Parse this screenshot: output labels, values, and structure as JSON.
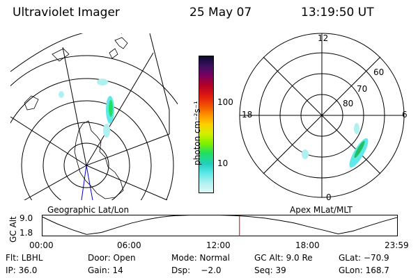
{
  "header": {
    "instrument": "Ultraviolet Imager",
    "date": "25 May 07",
    "time": "13:19:50 UT"
  },
  "colorbar": {
    "label": "photon cm⁻²s⁻¹",
    "ticks": [
      "100",
      "10"
    ],
    "colors": [
      "#0a0a30",
      "#3a1060",
      "#7a0060",
      "#b00028",
      "#e01810",
      "#f05000",
      "#ff9000",
      "#ffd000",
      "#d0f000",
      "#80f000",
      "#20e060",
      "#20d0c0",
      "#60e8e8",
      "#b0f0f0",
      "#e0f8f8"
    ]
  },
  "left_map": {
    "label": "Geographic Lat/Lon"
  },
  "right_map": {
    "label": "Apex MLat/MLT",
    "mlt_labels": [
      "12",
      "18",
      "6",
      "0"
    ],
    "lat_labels": [
      "60",
      "70",
      "80"
    ]
  },
  "chart_data": {
    "type": "line",
    "title": "",
    "ylabel": "GC Alt",
    "yticks": [
      "9.0",
      "1.8"
    ],
    "ylim": [
      1.8,
      9.0
    ],
    "xticks": [
      "00:00",
      "06:00",
      "12:00",
      "18:00",
      "23:59"
    ],
    "series": [
      {
        "x": [
          0,
          1,
          2,
          3,
          4,
          5,
          6,
          7,
          8,
          9,
          10,
          11,
          11.5,
          12,
          13,
          14,
          15,
          16,
          17,
          18,
          19,
          20,
          21,
          22,
          23,
          23.99
        ],
        "y": [
          8.4,
          6.0,
          4.0,
          2.3,
          3.0,
          4.6,
          6.2,
          7.4,
          8.3,
          8.8,
          9.0,
          9.0,
          9.0,
          9.0,
          8.8,
          8.5,
          8.0,
          7.2,
          6.3,
          5.0,
          3.8,
          2.5,
          3.5,
          5.2,
          6.8,
          8.2
        ]
      }
    ],
    "current_time_hours": 13.33
  },
  "info": {
    "row1": [
      "Flt: LBHL",
      "Door: Open",
      "Mode: Normal",
      "GC Alt: 9.0 Re",
      "GLat: −70.9"
    ],
    "row2": [
      "IP: 36.0",
      "Gain: 14",
      "Dsp:    −2.0",
      "Seq: 39",
      "GLon: 168.7"
    ]
  }
}
